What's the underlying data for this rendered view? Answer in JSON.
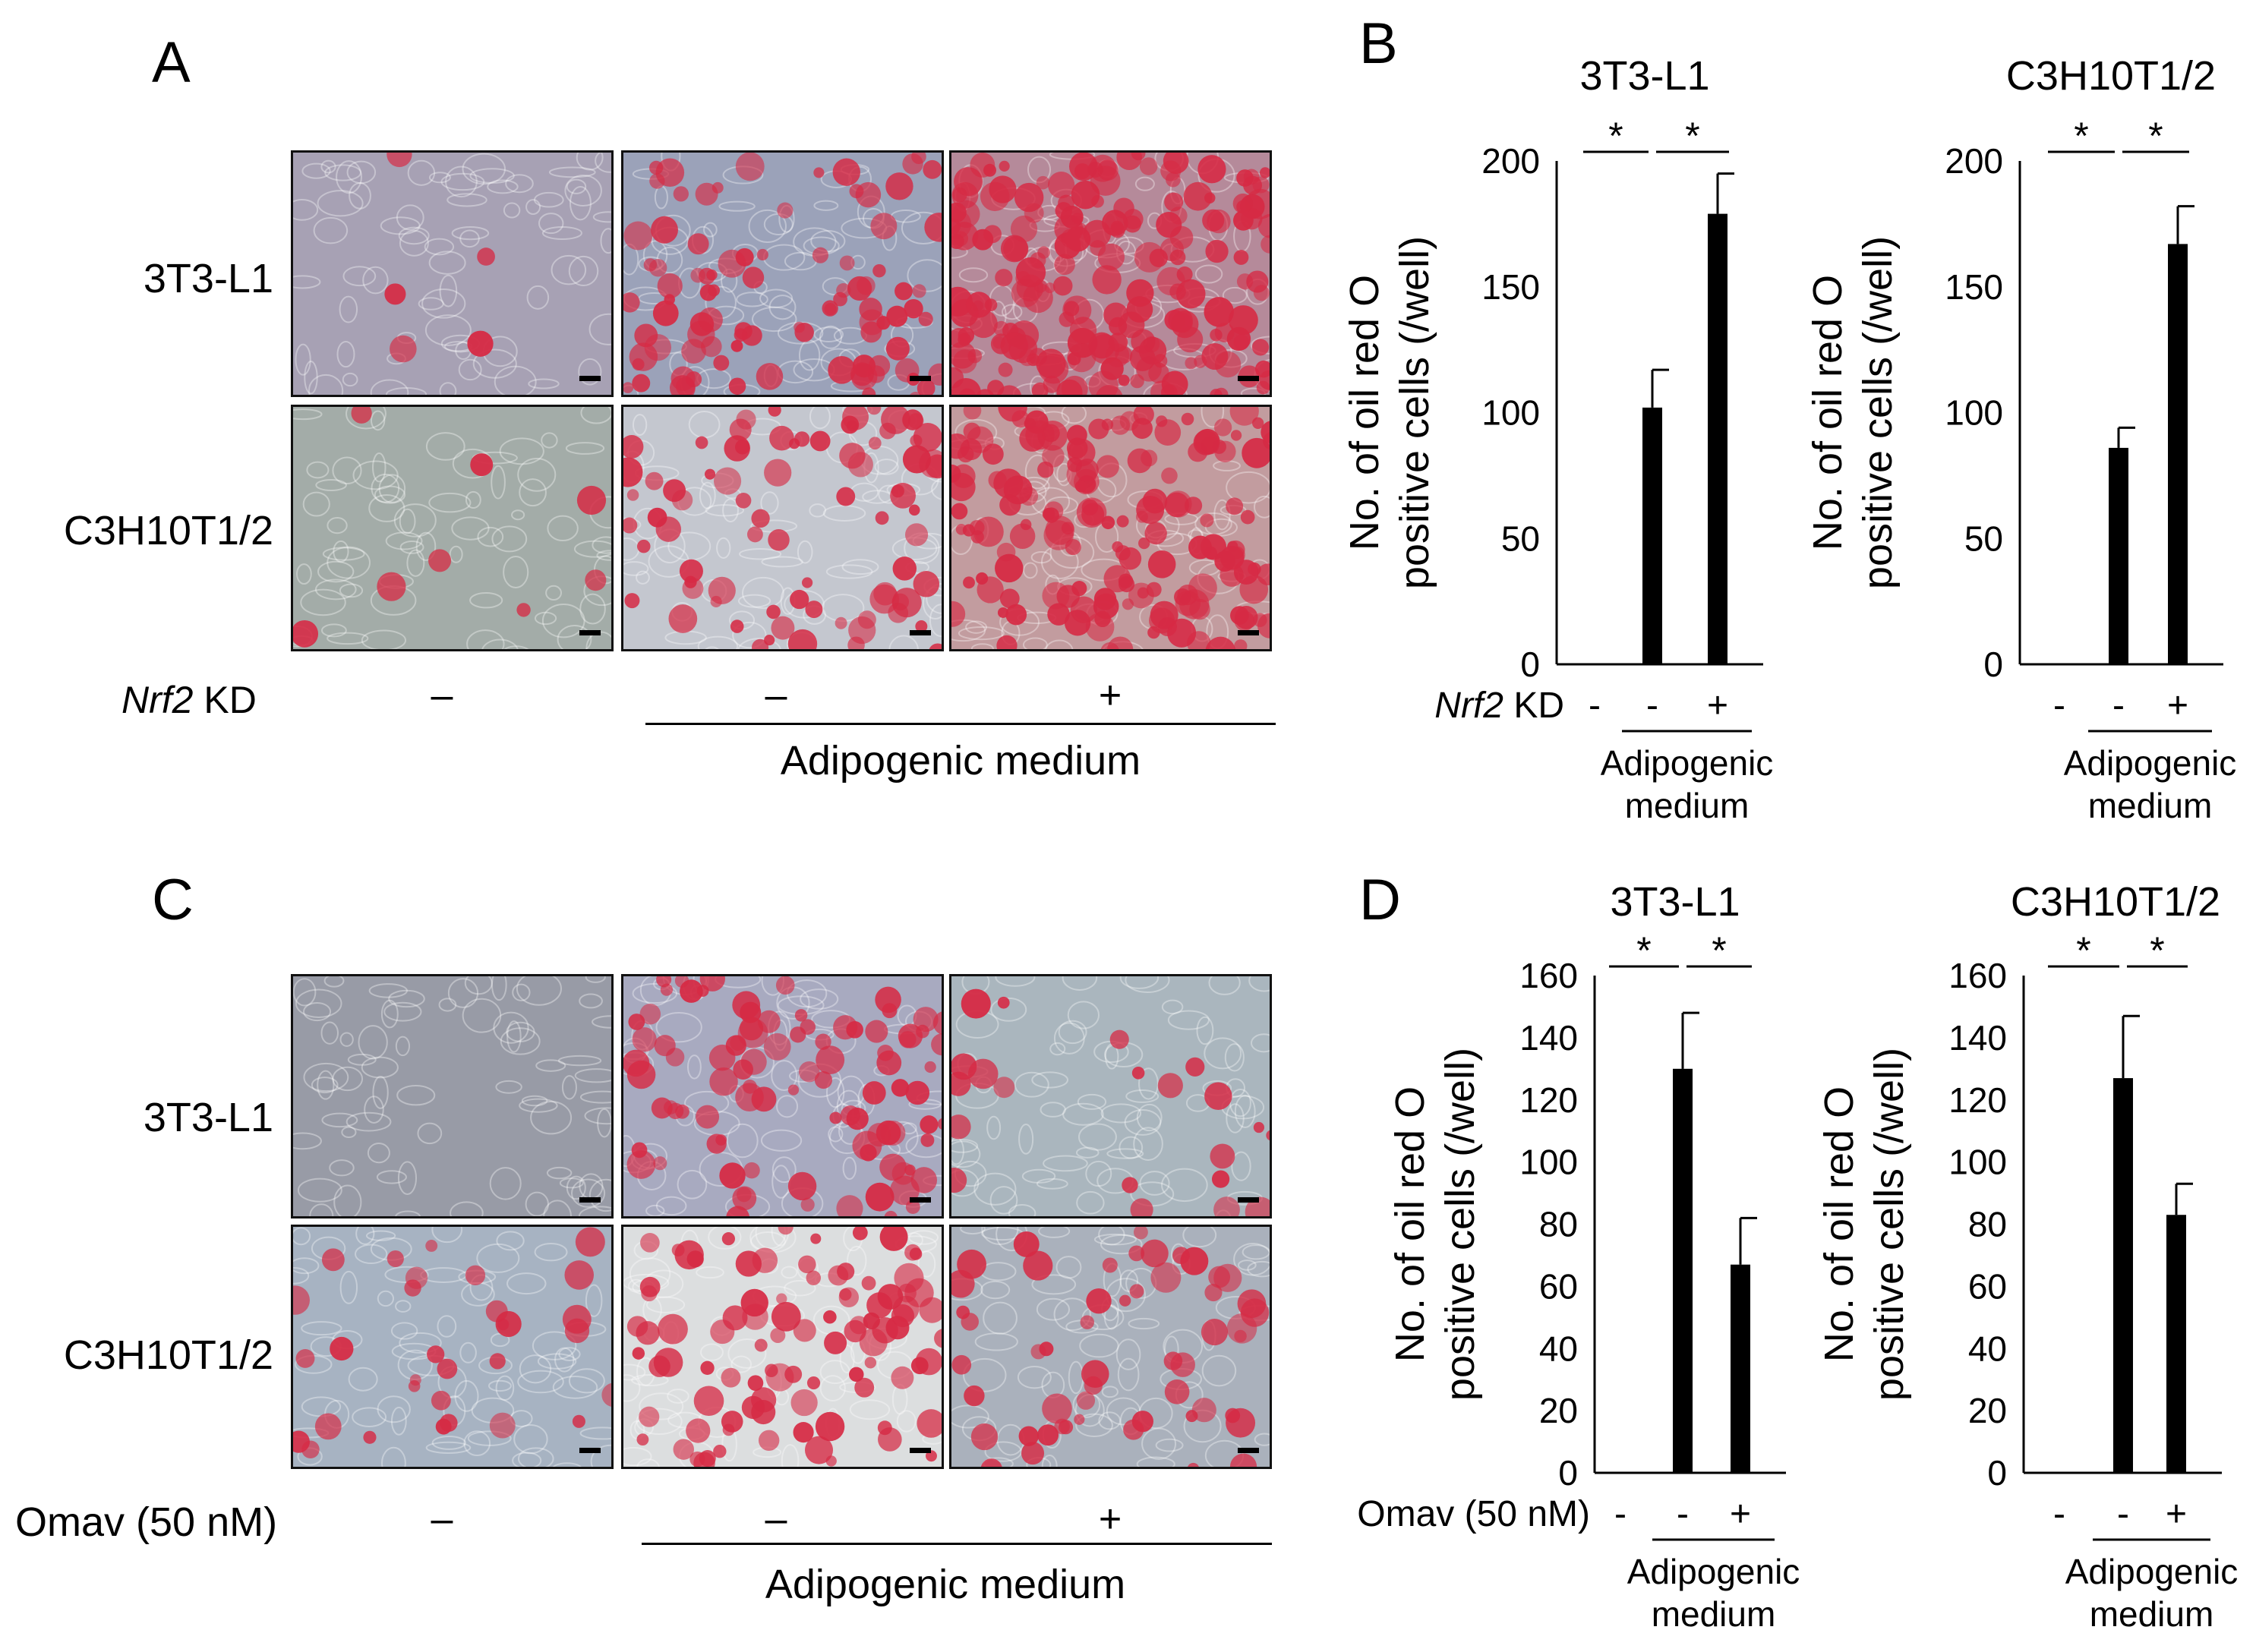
{
  "panels": {
    "A": "A",
    "B": "B",
    "C": "C",
    "D": "D"
  },
  "cell_lines": [
    "3T3-L1",
    "C3H10T1/2"
  ],
  "micrographs": {
    "A": {
      "condition_label_italic": "Nrf2",
      "condition_label_rest": " KD",
      "signs": [
        "–",
        "–",
        "+"
      ],
      "medium_label": "Adipogenic medium",
      "tint": {
        "3T3-L1": [
          "#a7a1b4",
          "#9ba2b9",
          "#b58a9a"
        ],
        "C3H10T1/2": [
          "#a3aca8",
          "#c4c7cf",
          "#c29c9f"
        ]
      },
      "red_density": {
        "3T3-L1": [
          0.02,
          0.35,
          0.75
        ],
        "C3H10T1/2": [
          0.03,
          0.3,
          0.6
        ]
      }
    },
    "C": {
      "condition_label": "Omav (50 nM)",
      "signs": [
        "–",
        "–",
        "+"
      ],
      "medium_label": "Adipogenic medium",
      "tint": {
        "3T3-L1": [
          "#989ba6",
          "#a8aac0",
          "#aab6be"
        ],
        "C3H10T1/2": [
          "#a7b3c2",
          "#dcdedf",
          "#aab1bc"
        ]
      },
      "red_density": {
        "3T3-L1": [
          0.0,
          0.35,
          0.08
        ],
        "C3H10T1/2": [
          0.12,
          0.35,
          0.2
        ]
      }
    }
  },
  "bar_labels": {
    "B": {
      "italic": "Nrf2",
      "rest": " KD",
      "signs": [
        "-",
        "-",
        "+"
      ]
    },
    "D": {
      "label": "Omav (50 nM)",
      "signs": [
        "-",
        "-",
        "+"
      ]
    },
    "medium_line1": "Adipogenic",
    "medium_line2": "medium",
    "ylabel_line1": "No. of oil red O",
    "ylabel_line2": "positive cells (/well)",
    "sig": "*"
  },
  "chart_data": [
    {
      "panel": "B",
      "type": "bar",
      "title": "3T3-L1",
      "categories": [
        "-",
        "-",
        "+"
      ],
      "values": [
        0,
        102,
        179
      ],
      "errors": [
        0,
        15,
        16
      ],
      "ylim": [
        0,
        200
      ],
      "yticks": [
        0,
        50,
        100,
        150,
        200
      ],
      "ylabel": "No. of oil red O positive cells (/well)",
      "significance": [
        "*",
        "*"
      ]
    },
    {
      "panel": "B",
      "type": "bar",
      "title": "C3H10T1/2",
      "categories": [
        "-",
        "-",
        "+"
      ],
      "values": [
        0,
        86,
        167
      ],
      "errors": [
        0,
        8,
        15
      ],
      "ylim": [
        0,
        200
      ],
      "yticks": [
        0,
        50,
        100,
        150,
        200
      ],
      "ylabel": "No. of oil red O positive cells (/well)",
      "significance": [
        "*",
        "*"
      ]
    },
    {
      "panel": "D",
      "type": "bar",
      "title": "3T3-L1",
      "categories": [
        "-",
        "-",
        "+"
      ],
      "values": [
        0,
        130,
        67
      ],
      "errors": [
        0,
        18,
        15
      ],
      "ylim": [
        0,
        160
      ],
      "yticks": [
        0,
        20,
        40,
        60,
        80,
        100,
        120,
        140,
        160
      ],
      "ylabel": "No. of oil red O positive cells (/well)",
      "significance": [
        "*",
        "*"
      ]
    },
    {
      "panel": "D",
      "type": "bar",
      "title": "C3H10T1/2",
      "categories": [
        "-",
        "-",
        "+"
      ],
      "values": [
        0,
        127,
        83
      ],
      "errors": [
        0,
        20,
        10
      ],
      "ylim": [
        0,
        160
      ],
      "yticks": [
        0,
        20,
        40,
        60,
        80,
        100,
        120,
        140,
        160
      ],
      "ylabel": "No. of oil red O positive cells (/well)",
      "significance": [
        "*",
        "*"
      ]
    }
  ]
}
